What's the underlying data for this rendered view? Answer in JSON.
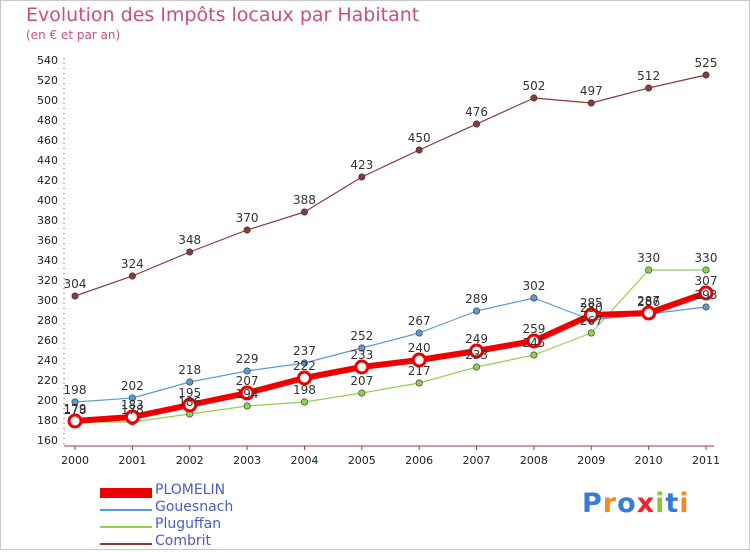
{
  "title": "Evolution des Impôts locaux par Habitant",
  "subtitle": "(en € et par an)",
  "logo": "Proxiti",
  "chart_data": {
    "type": "line",
    "title": "Evolution des Impôts locaux par Habitant",
    "subtitle": "(en € et par an)",
    "xlabel": "",
    "ylabel": "",
    "x": [
      "2000",
      "2001",
      "2002",
      "2003",
      "2004",
      "2005",
      "2006",
      "2007",
      "2008",
      "2009",
      "2010",
      "2011"
    ],
    "ylim": [
      160,
      540
    ],
    "ytick_step": 20,
    "grid": false,
    "legend_position": "bottom-left",
    "series": [
      {
        "name": "PLOMELIN",
        "color": "#ee0000",
        "width": 6,
        "marker": 6,
        "values": [
          179,
          183,
          195,
          207,
          222,
          233,
          240,
          249,
          259,
          285,
          287,
          307
        ]
      },
      {
        "name": "Gouesnach",
        "color": "#5b9bd5",
        "width": 1.2,
        "marker": 3.2,
        "values": [
          198,
          202,
          218,
          229,
          237,
          252,
          267,
          289,
          302,
          280,
          286,
          293
        ]
      },
      {
        "name": "Pluguffan",
        "color": "#92d050",
        "width": 1.2,
        "marker": 3.2,
        "values": [
          178,
          178,
          186,
          194,
          198,
          207,
          217,
          233,
          245,
          267,
          330,
          330
        ]
      },
      {
        "name": "Combrit",
        "color": "#8b3a3a",
        "width": 1.2,
        "marker": 3.2,
        "values": [
          304,
          324,
          348,
          370,
          388,
          423,
          450,
          476,
          502,
          497,
          512,
          525
        ]
      }
    ]
  }
}
